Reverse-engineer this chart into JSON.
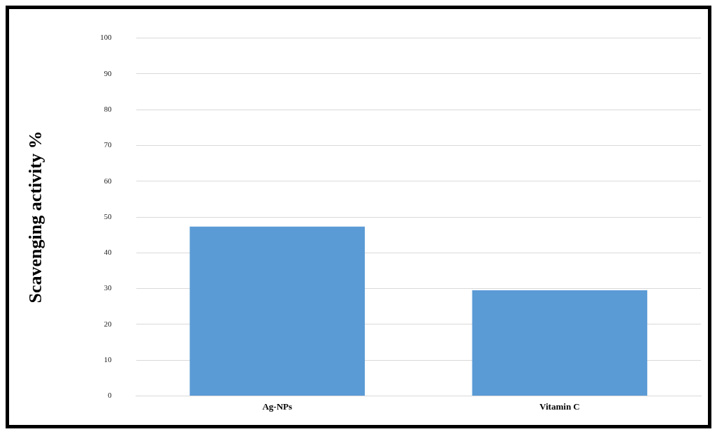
{
  "chart_data": {
    "type": "bar",
    "ylabel": "Scavenging activity %",
    "categories": [
      "Ag-NPs",
      "Vitamin C"
    ],
    "values": [
      47.3,
      29.5
    ],
    "color": "#5b9bd5",
    "ylim": [
      0,
      100
    ],
    "yticks": [
      0,
      10,
      20,
      30,
      40,
      50,
      60,
      70,
      80,
      90,
      100
    ],
    "grid": "y",
    "legend": false
  }
}
